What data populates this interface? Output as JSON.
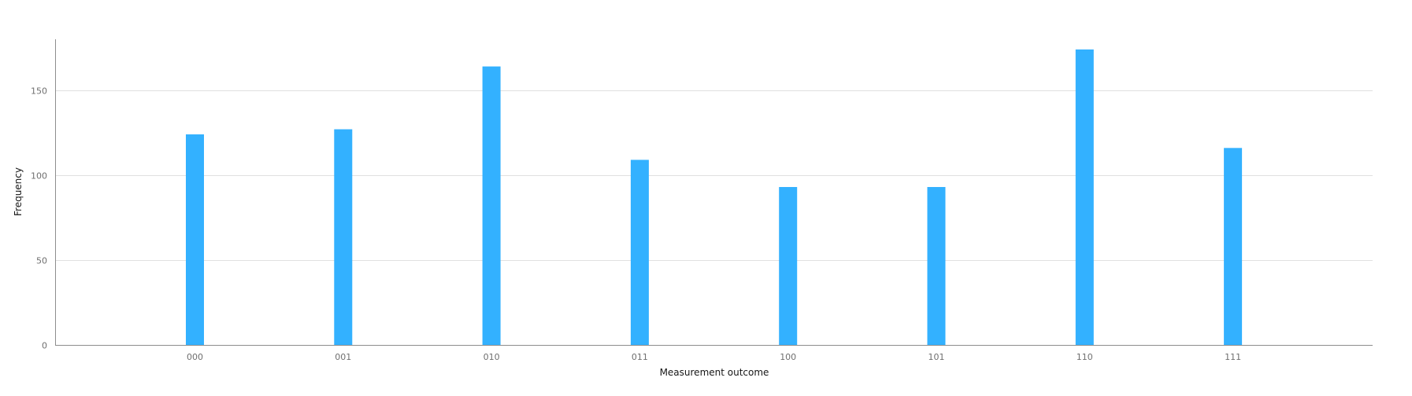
{
  "chart_data": {
    "type": "bar",
    "categories": [
      "000",
      "001",
      "010",
      "011",
      "100",
      "101",
      "110",
      "111"
    ],
    "values": [
      124,
      127,
      164,
      109,
      93,
      93,
      174,
      116
    ],
    "xlabel": "Measurement outcome",
    "ylabel": "Frequency",
    "ylim": [
      0,
      180
    ],
    "yticks": [
      0,
      50,
      100,
      150
    ],
    "grid": true,
    "legend": "none",
    "bar_color": "#33b1ff"
  }
}
